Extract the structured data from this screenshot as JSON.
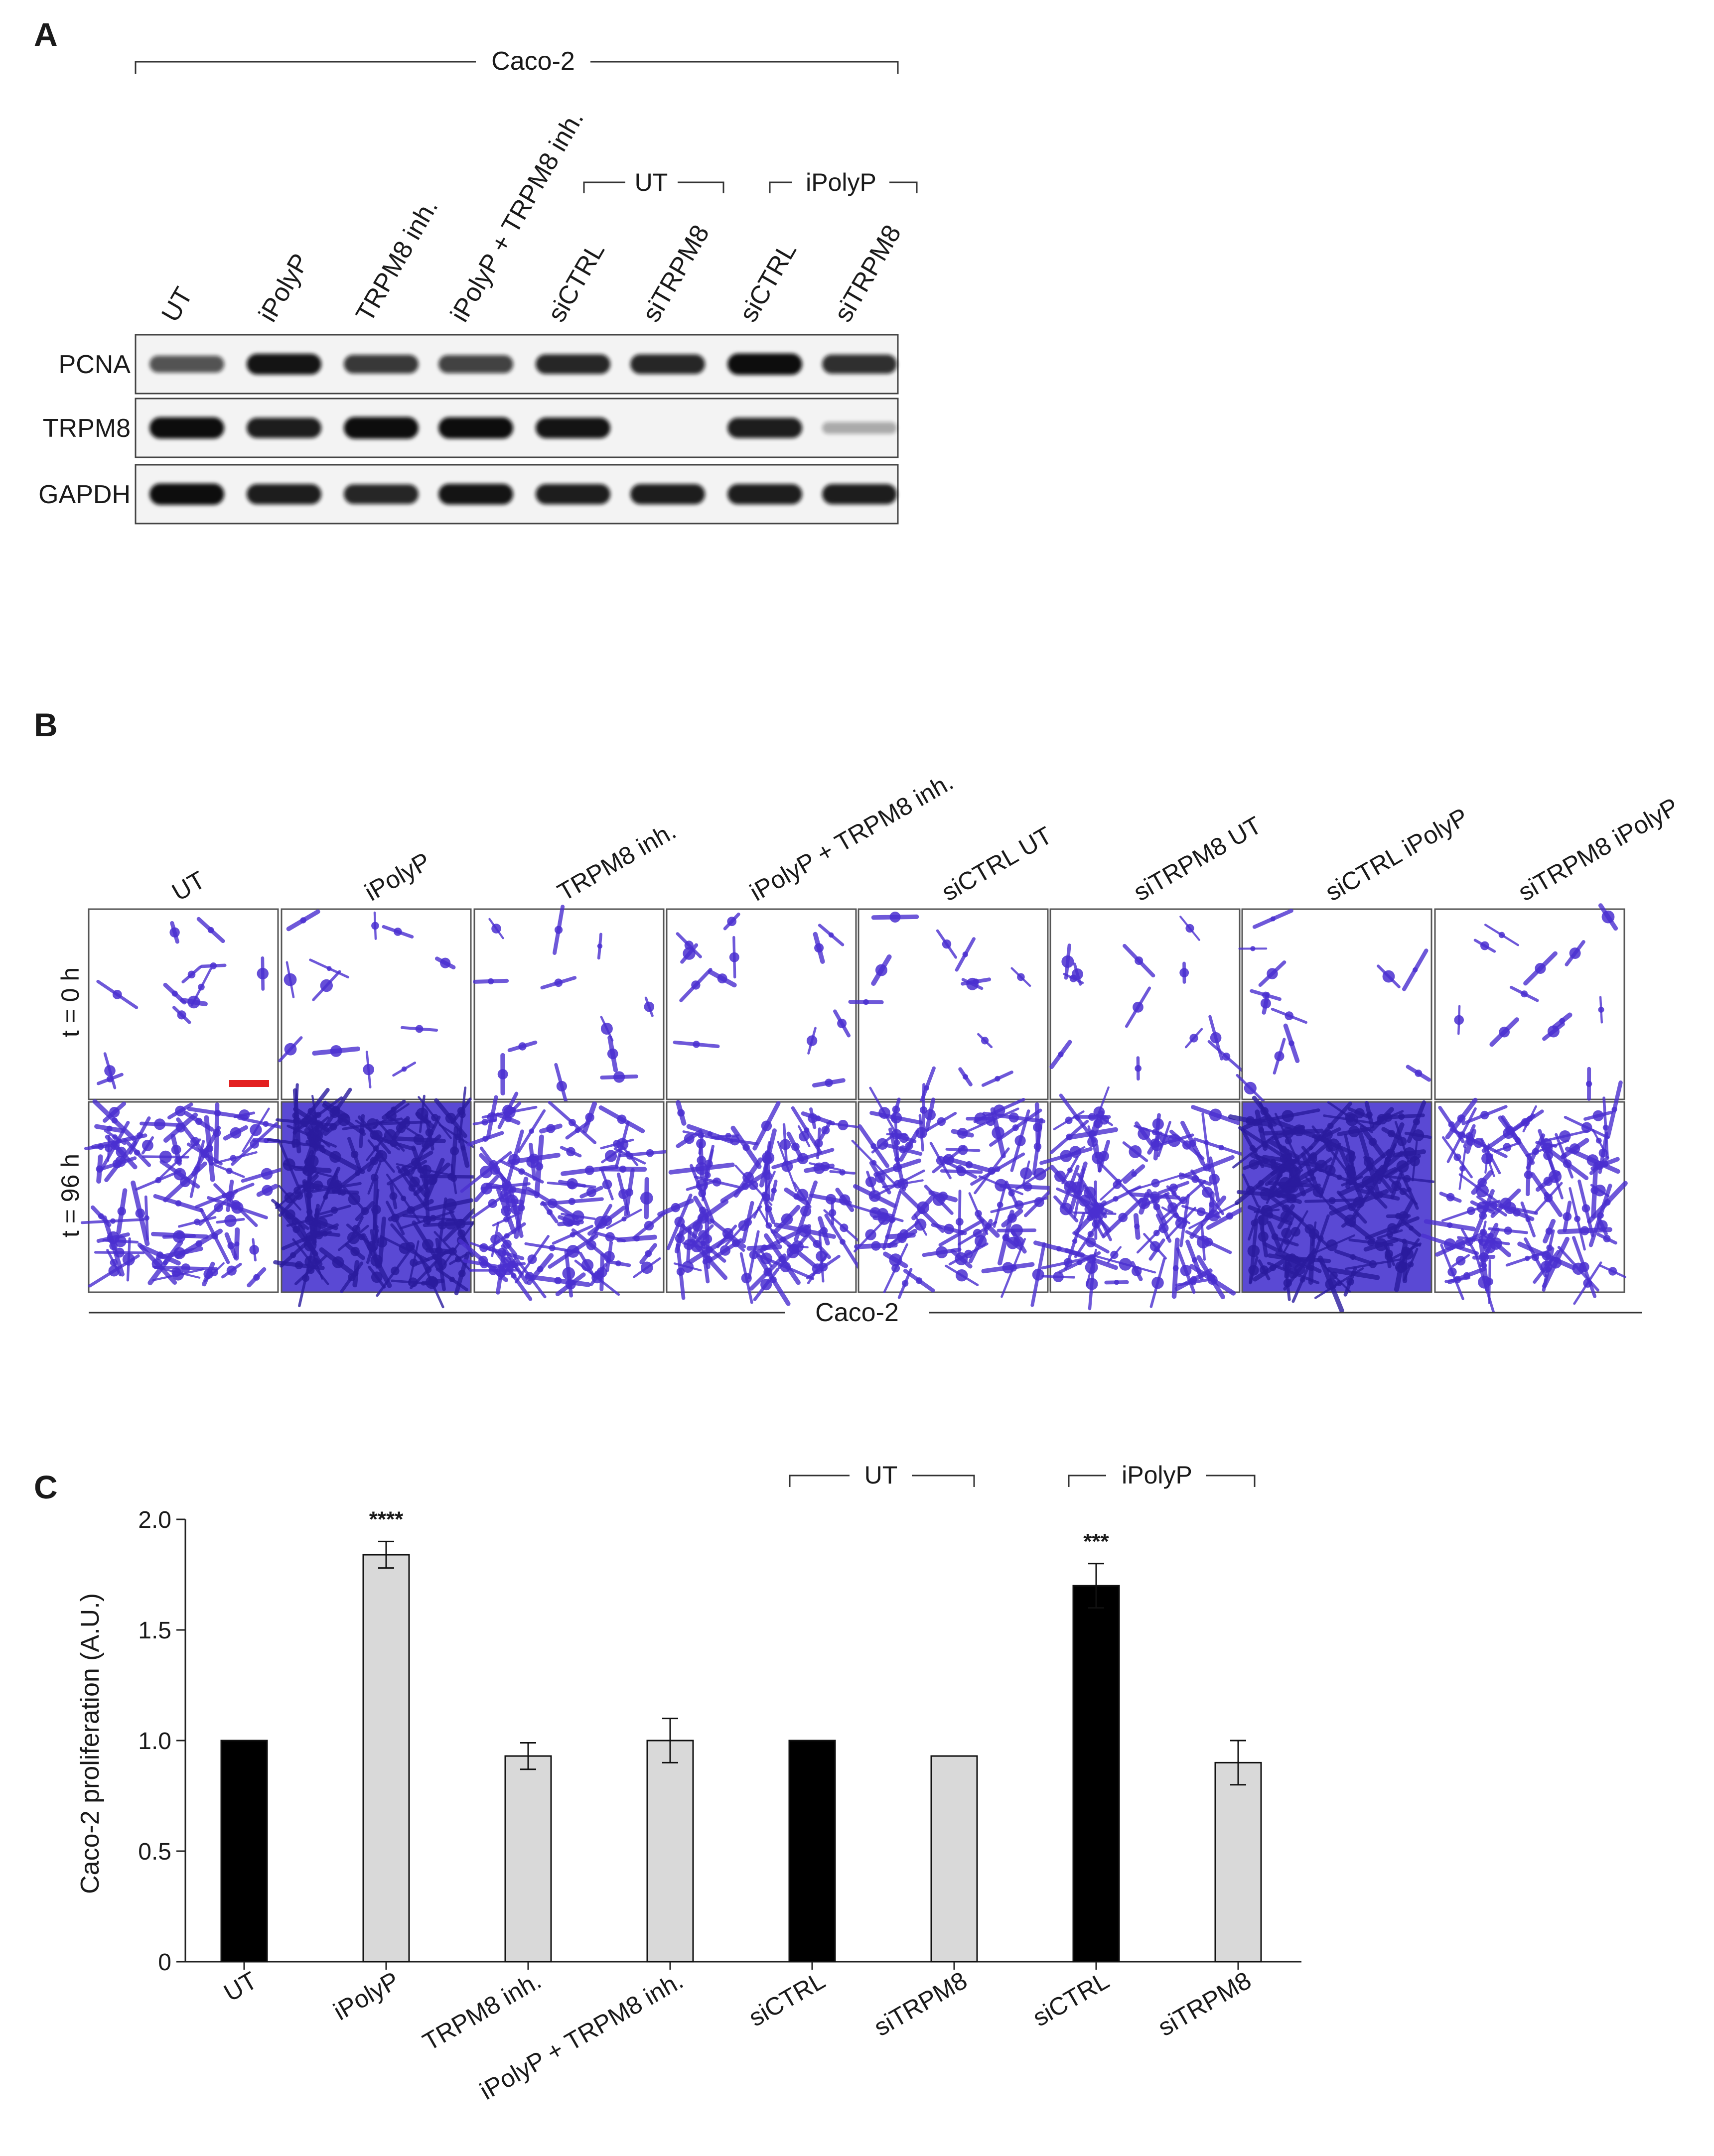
{
  "panel_a": {
    "label": "A",
    "cell_line": "Caco-2",
    "lanes": [
      "UT",
      "iPolyP",
      "TRPM8 inh.",
      "iPolyP + TRPM8 inh.",
      "siCTRL",
      "siTRPM8",
      "siCTRL",
      "siTRPM8"
    ],
    "group_ut": "UT",
    "group_ipolyp": "iPolyP",
    "blots": [
      {
        "name": "PCNA",
        "intensity": [
          0.55,
          0.9,
          0.7,
          0.65,
          0.8,
          0.8,
          0.95,
          0.75
        ]
      },
      {
        "name": "TRPM8",
        "intensity": [
          0.95,
          0.85,
          1.0,
          0.95,
          0.9,
          0.0,
          0.85,
          0.08
        ]
      },
      {
        "name": "GAPDH",
        "intensity": [
          0.95,
          0.85,
          0.8,
          0.9,
          0.85,
          0.85,
          0.85,
          0.85
        ]
      }
    ]
  },
  "panel_b": {
    "label": "B",
    "cell_line": "Caco-2",
    "columns": [
      "UT",
      "iPolyP",
      "TRPM8 inh.",
      "iPolyP + TRPM8 inh.",
      "siCTRL UT",
      "siTRPM8 UT",
      "siCTRL iPolyP",
      "siTRPM8 iPolyP"
    ],
    "rows": [
      "t = 0 h",
      "t = 96 h"
    ],
    "stain_color": "#4a2fd0",
    "scale_bar_color": "#e32020",
    "density_96h": [
      0.45,
      1.0,
      0.55,
      0.55,
      0.5,
      0.6,
      1.0,
      0.55
    ]
  },
  "panel_c": {
    "label": "C",
    "group_ut": "UT",
    "group_ipolyp": "iPolyP",
    "chart_data": {
      "type": "bar",
      "categories": [
        "UT",
        "iPolyP",
        "TRPM8 inh.",
        "iPolyP + TRPM8 inh.",
        "siCTRL",
        "siTRPM8",
        "siCTRL",
        "siTRPM8"
      ],
      "values": [
        1.0,
        1.84,
        0.93,
        1.0,
        1.0,
        0.93,
        1.7,
        0.9
      ],
      "errors": [
        0.0,
        0.06,
        0.06,
        0.1,
        0.0,
        0.0,
        0.1,
        0.1
      ],
      "bar_colors": [
        "#000000",
        "#d9d9d9",
        "#d9d9d9",
        "#d9d9d9",
        "#000000",
        "#d9d9d9",
        "#000000",
        "#d9d9d9"
      ],
      "significance": [
        "",
        "****",
        "",
        "",
        "",
        "",
        "***",
        ""
      ],
      "ylabel": "Caco-2 proliferation (A.U.)",
      "ylim": [
        0,
        2.0
      ],
      "yticks": [
        "0",
        "0.5",
        "1.0",
        "1.5",
        "2.0"
      ],
      "ytick_values": [
        0,
        0.5,
        1.0,
        1.5,
        2.0
      ]
    }
  }
}
